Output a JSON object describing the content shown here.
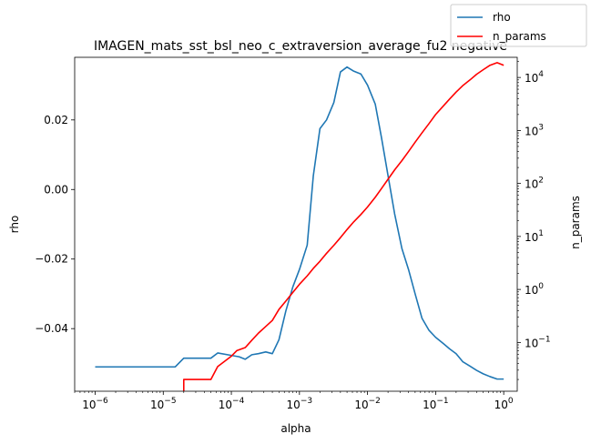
{
  "chart_data": {
    "type": "line",
    "title": "IMAGEN_mats_sst_bsl_neo_c_extraversion_average_fu2 negative",
    "xlabel": "alpha",
    "ylabel": "rho",
    "y2label": "n_params",
    "xscale": "log",
    "xlim": [
      5e-07,
      1.58
    ],
    "ylim": [
      -0.058,
      0.038
    ],
    "y2scale": "log",
    "y2lim": [
      0.012,
      24000
    ],
    "x_ticks": [
      {
        "value": 1e-06,
        "label": "10",
        "exp": "−6"
      },
      {
        "value": 1e-05,
        "label": "10",
        "exp": "−5"
      },
      {
        "value": 0.0001,
        "label": "10",
        "exp": "−4"
      },
      {
        "value": 0.001,
        "label": "10",
        "exp": "−3"
      },
      {
        "value": 0.01,
        "label": "10",
        "exp": "−2"
      },
      {
        "value": 0.1,
        "label": "10",
        "exp": "−1"
      },
      {
        "value": 1,
        "label": "10",
        "exp": "0"
      }
    ],
    "y_ticks": [
      {
        "value": 0.02,
        "label": "0.02"
      },
      {
        "value": 0.0,
        "label": "0.00"
      },
      {
        "value": -0.02,
        "label": "−0.02"
      },
      {
        "value": -0.04,
        "label": "−0.04"
      }
    ],
    "y2_ticks": [
      {
        "value": 10000,
        "label": "10",
        "exp": "4"
      },
      {
        "value": 1000,
        "label": "10",
        "exp": "3"
      },
      {
        "value": 100,
        "label": "10",
        "exp": "2"
      },
      {
        "value": 10,
        "label": "10",
        "exp": "1"
      },
      {
        "value": 1,
        "label": "10",
        "exp": "0"
      },
      {
        "value": 0.1,
        "label": "10",
        "exp": "−1"
      }
    ],
    "legend": {
      "placement": "top-right (outside axes)",
      "entries": [
        "rho",
        "n_params"
      ]
    },
    "series": [
      {
        "name": "rho",
        "axis": "left",
        "color": "#1f77b4",
        "x": [
          1e-06,
          1.5e-06,
          2.5e-06,
          4e-06,
          6e-06,
          1e-05,
          1.5e-05,
          2e-05,
          3e-05,
          5e-05,
          6.3e-05,
          0.0001,
          0.00013,
          0.00016,
          0.0002,
          0.00025,
          0.00032,
          0.0004,
          0.0005,
          0.00063,
          0.0008,
          0.001,
          0.0013,
          0.0016,
          0.002,
          0.0025,
          0.0032,
          0.004,
          0.005,
          0.0063,
          0.008,
          0.01,
          0.013,
          0.016,
          0.02,
          0.025,
          0.032,
          0.04,
          0.05,
          0.063,
          0.08,
          0.1,
          0.13,
          0.16,
          0.2,
          0.25,
          0.32,
          0.4,
          0.5,
          0.63,
          0.8,
          1.0
        ],
        "y": [
          -0.051,
          -0.051,
          -0.051,
          -0.051,
          -0.051,
          -0.051,
          -0.051,
          -0.0485,
          -0.0485,
          -0.0485,
          -0.047,
          -0.0477,
          -0.0481,
          -0.0488,
          -0.0475,
          -0.0472,
          -0.0467,
          -0.0472,
          -0.0432,
          -0.035,
          -0.028,
          -0.023,
          -0.016,
          0.004,
          0.0175,
          0.02,
          0.025,
          0.0338,
          0.0352,
          0.034,
          0.0332,
          0.03,
          0.0245,
          0.015,
          0.004,
          -0.007,
          -0.017,
          -0.023,
          -0.03,
          -0.037,
          -0.0405,
          -0.0425,
          -0.0443,
          -0.0458,
          -0.0472,
          -0.0495,
          -0.0508,
          -0.052,
          -0.053,
          -0.0538,
          -0.0545,
          -0.0545
        ]
      },
      {
        "name": "n_params",
        "axis": "right",
        "color": "#ff0000",
        "x": [
          2e-05,
          2e-05,
          3e-05,
          5e-05,
          6.3e-05,
          0.0001,
          0.00012,
          0.00016,
          0.0002,
          0.00025,
          0.00032,
          0.0004,
          0.0005,
          0.00063,
          0.0008,
          0.001,
          0.0013,
          0.0016,
          0.002,
          0.0025,
          0.0032,
          0.004,
          0.005,
          0.0063,
          0.008,
          0.01,
          0.013,
          0.016,
          0.02,
          0.025,
          0.032,
          0.04,
          0.05,
          0.063,
          0.08,
          0.1,
          0.13,
          0.16,
          0.2,
          0.25,
          0.32,
          0.4,
          0.5,
          0.63,
          0.8,
          1.0
        ],
        "y": [
          0.012,
          0.02,
          0.02,
          0.02,
          0.035,
          0.055,
          0.07,
          0.08,
          0.11,
          0.15,
          0.2,
          0.26,
          0.42,
          0.6,
          0.88,
          1.25,
          1.8,
          2.5,
          3.4,
          4.8,
          6.8,
          9.5,
          13.5,
          19,
          26,
          36,
          55,
          80,
          120,
          180,
          270,
          400,
          600,
          900,
          1350,
          2000,
          2900,
          3900,
          5300,
          7000,
          9000,
          11500,
          14000,
          17000,
          19000,
          17000
        ]
      }
    ]
  }
}
